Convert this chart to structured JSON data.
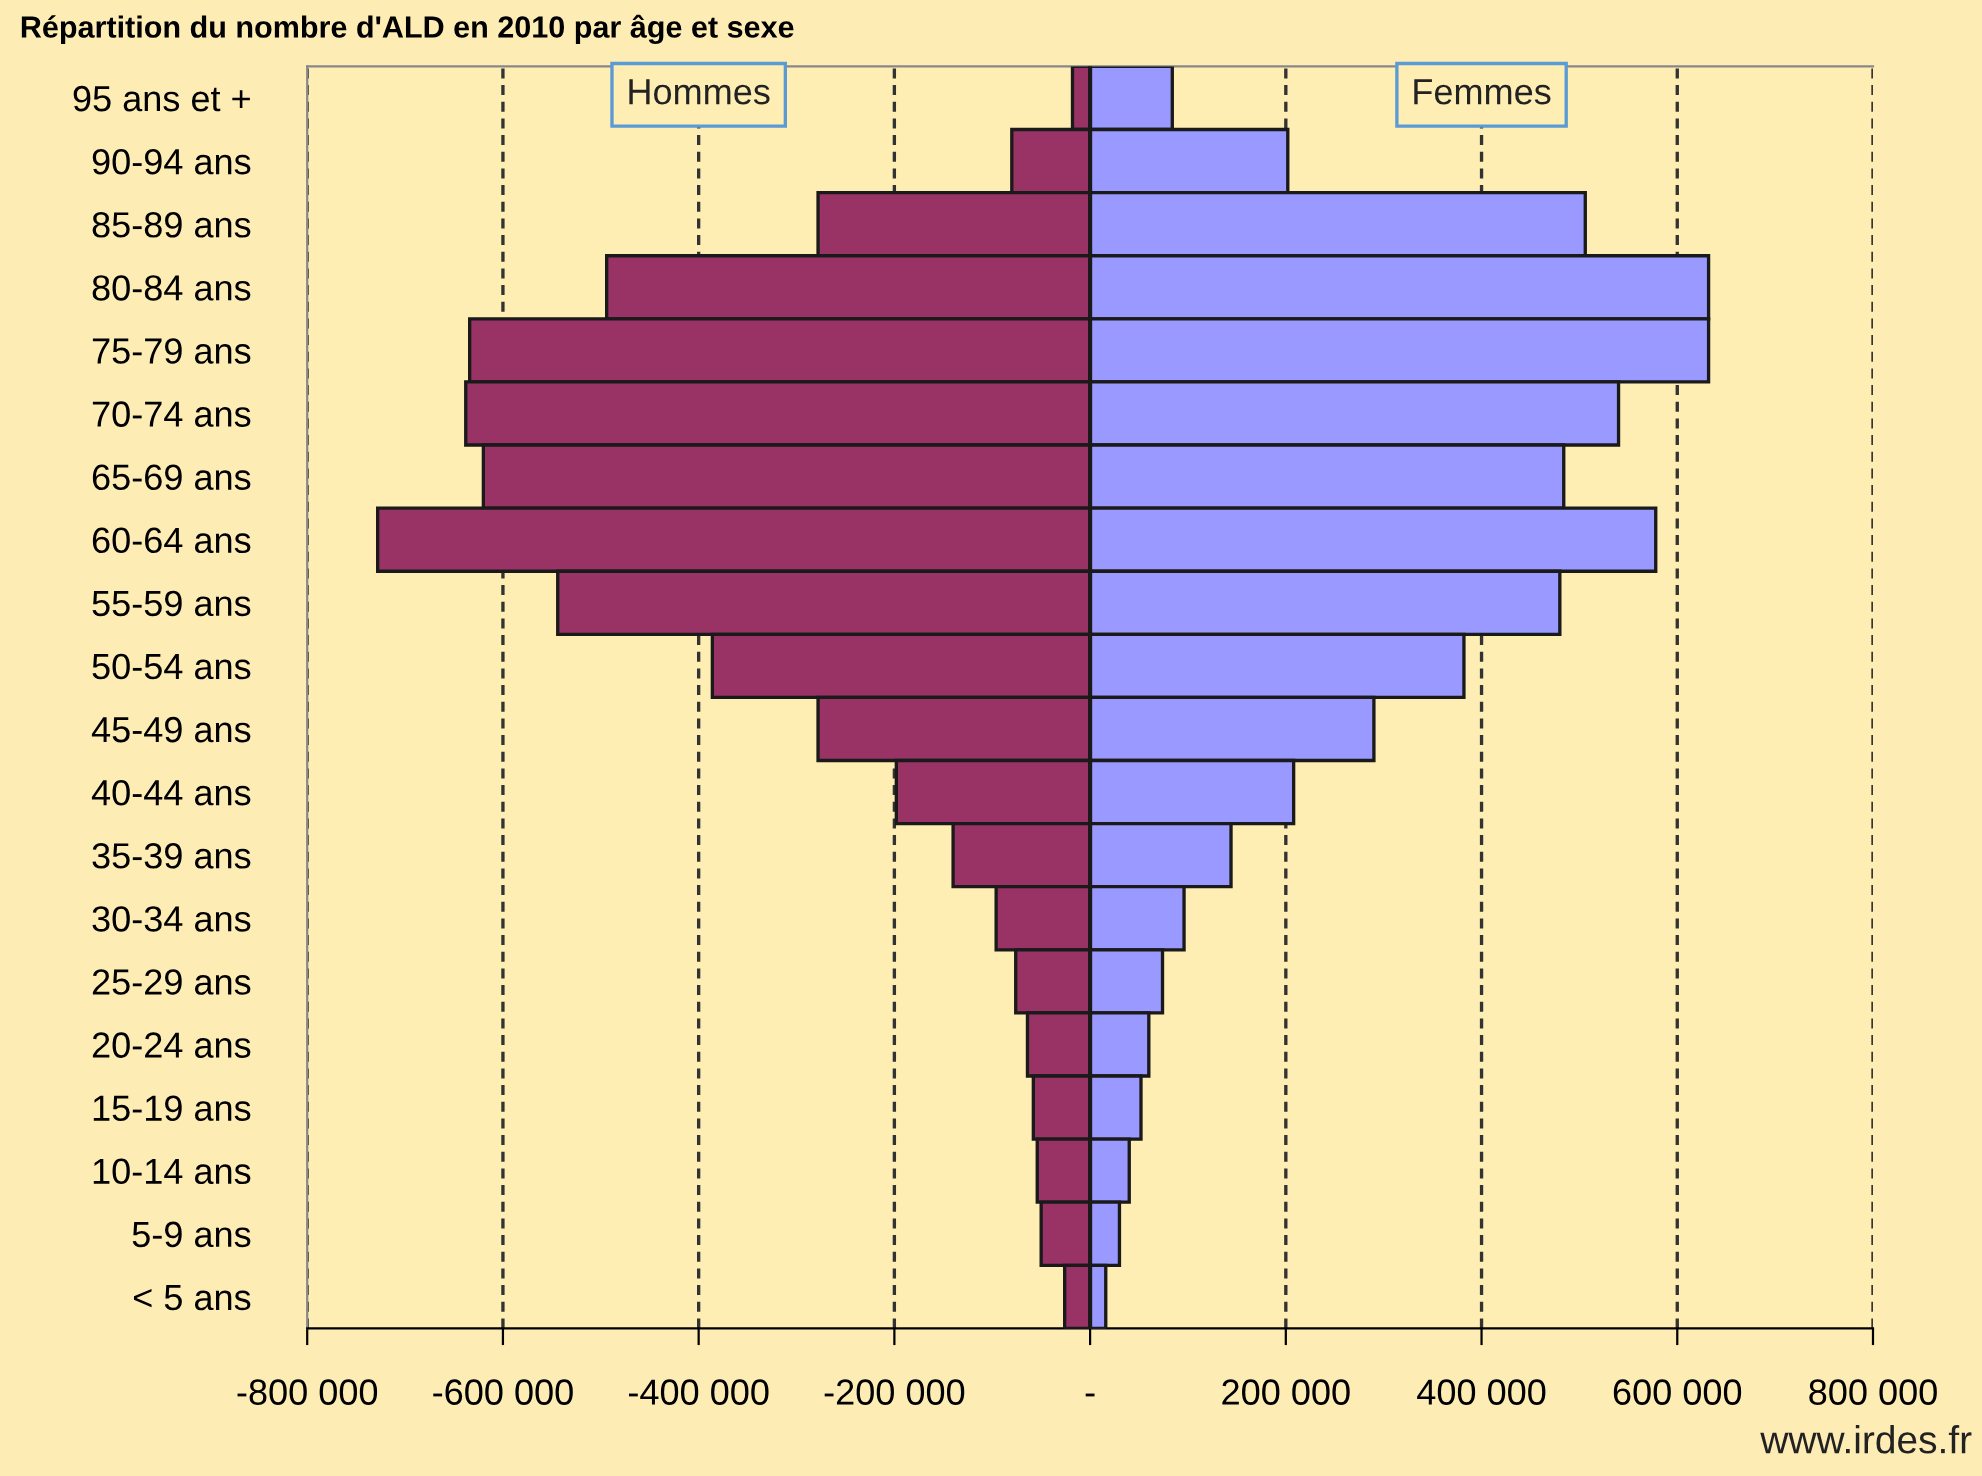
{
  "chart_data": {
    "type": "bar",
    "orientation": "horizontal",
    "stacked": true,
    "title": "Répartition du nombre d'ALD en 2010 par âge et sexe",
    "categories": [
      "95 ans et +",
      "90-94 ans",
      "85-89 ans",
      "80-84 ans",
      "75-79 ans",
      "70-74 ans",
      "65-69 ans",
      "60-64 ans",
      "55-59 ans",
      "50-54 ans",
      "45-49 ans",
      "40-44 ans",
      "35-39 ans",
      "30-34 ans",
      "25-29 ans",
      "20-24 ans",
      "15-19 ans",
      "10-14 ans",
      "5-9 ans",
      "< 5 ans"
    ],
    "series": [
      {
        "name": "Hommes",
        "color": "#993366",
        "values": [
          -18000,
          -80000,
          -278000,
          -494000,
          -634000,
          -638000,
          -620000,
          -728000,
          -544000,
          -386000,
          -278000,
          -198000,
          -140000,
          -96000,
          -76000,
          -64000,
          -58000,
          -54000,
          -50000,
          -26000
        ]
      },
      {
        "name": "Femmes",
        "color": "#9999ff",
        "values": [
          84000,
          202000,
          506000,
          632000,
          632000,
          540000,
          484000,
          578000,
          480000,
          382000,
          290000,
          208000,
          144000,
          96000,
          74000,
          60000,
          52000,
          40000,
          30000,
          16000
        ]
      }
    ],
    "xlim": [
      -800000,
      800000
    ],
    "xticks": [
      {
        "value": -800000,
        "label": "-800 000"
      },
      {
        "value": -600000,
        "label": "-600 000"
      },
      {
        "value": -400000,
        "label": "-400 000"
      },
      {
        "value": -200000,
        "label": "-200 000"
      },
      {
        "value": 0,
        "label": "-"
      },
      {
        "value": 200000,
        "label": "200 000"
      },
      {
        "value": 400000,
        "label": "400 000"
      },
      {
        "value": 600000,
        "label": "600 000"
      },
      {
        "value": 800000,
        "label": "800 000"
      }
    ],
    "grid": "x",
    "line_style": "dashed",
    "annotations": [
      "www.irdes.fr"
    ]
  }
}
